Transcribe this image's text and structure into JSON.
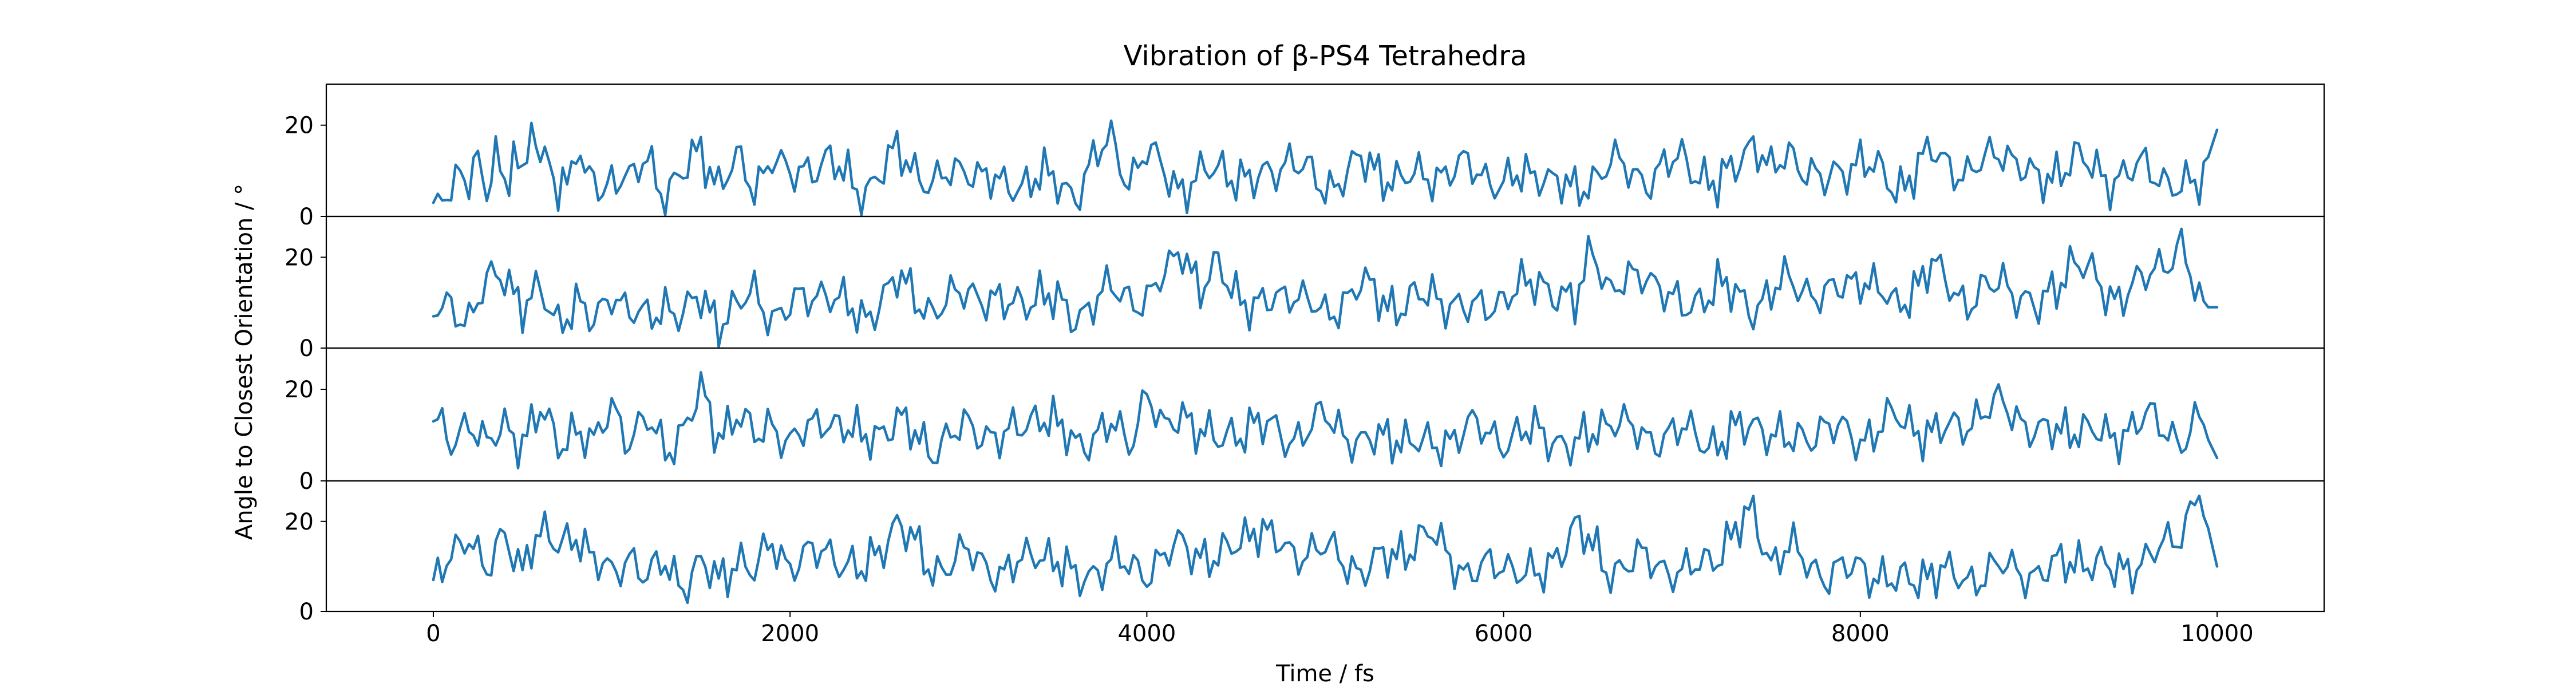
{
  "chart_data": {
    "type": "line",
    "title": "Vibration of β-PS4 Tetrahedra",
    "xlabel": "Time / fs",
    "ylabel": "Angle to Closest Orientation / °",
    "xlim": [
      -600,
      10600
    ],
    "x_ticks": [
      0,
      2000,
      4000,
      6000,
      8000,
      10000
    ],
    "x_tick_labels": [
      "0",
      "2000",
      "4000",
      "6000",
      "8000",
      "10000"
    ],
    "y_ticks": [
      0,
      20
    ],
    "y_tick_labels": [
      "0",
      "20"
    ],
    "ylim": [
      0,
      29
    ],
    "grid": false,
    "legend": "none",
    "line_color": "#1f77b4",
    "x_step": 25,
    "panels": [
      {
        "anchors": [
          [
            0,
            3
          ],
          [
            50,
            7
          ],
          [
            100,
            4
          ],
          [
            150,
            13
          ],
          [
            200,
            6
          ],
          [
            250,
            11
          ],
          [
            300,
            5
          ],
          [
            350,
            14
          ],
          [
            400,
            8
          ],
          [
            450,
            15
          ],
          [
            500,
            6
          ],
          [
            550,
            21
          ],
          [
            600,
            9
          ],
          [
            650,
            16
          ],
          [
            700,
            5
          ],
          [
            750,
            8
          ],
          [
            800,
            15
          ],
          [
            850,
            6
          ],
          [
            900,
            11
          ],
          [
            950,
            4
          ],
          [
            1000,
            10
          ],
          [
            1100,
            7
          ],
          [
            1200,
            13
          ],
          [
            1300,
            5
          ],
          [
            1400,
            9
          ],
          [
            1500,
            15
          ],
          [
            1600,
            7
          ],
          [
            1700,
            12
          ],
          [
            1800,
            6
          ],
          [
            1900,
            14
          ],
          [
            2000,
            8
          ],
          [
            2200,
            13
          ],
          [
            2400,
            5
          ],
          [
            2600,
            14
          ],
          [
            2800,
            7
          ],
          [
            3000,
            11
          ],
          [
            3200,
            6
          ],
          [
            3400,
            9
          ],
          [
            3600,
            5
          ],
          [
            3700,
            12
          ],
          [
            3800,
            17
          ],
          [
            3900,
            8
          ],
          [
            4000,
            14
          ],
          [
            4200,
            6
          ],
          [
            4400,
            11
          ],
          [
            4600,
            7
          ],
          [
            4800,
            13
          ],
          [
            5000,
            6
          ],
          [
            5200,
            12
          ],
          [
            5400,
            8
          ],
          [
            5600,
            9
          ],
          [
            5800,
            11
          ],
          [
            6000,
            7
          ],
          [
            6200,
            10
          ],
          [
            6400,
            5
          ],
          [
            6600,
            12
          ],
          [
            6800,
            8
          ],
          [
            7000,
            13
          ],
          [
            7200,
            6
          ],
          [
            7400,
            17
          ],
          [
            7500,
            9
          ],
          [
            7600,
            14
          ],
          [
            7800,
            7
          ],
          [
            8000,
            13
          ],
          [
            8200,
            6
          ],
          [
            8400,
            14
          ],
          [
            8600,
            9
          ],
          [
            8800,
            15
          ],
          [
            9000,
            7
          ],
          [
            9200,
            13
          ],
          [
            9400,
            8
          ],
          [
            9600,
            11
          ],
          [
            9800,
            6
          ],
          [
            9900,
            7
          ],
          [
            10000,
            19
          ]
        ]
      },
      {
        "anchors": [
          [
            0,
            7
          ],
          [
            100,
            10
          ],
          [
            200,
            6
          ],
          [
            300,
            14
          ],
          [
            400,
            17
          ],
          [
            500,
            9
          ],
          [
            600,
            12
          ],
          [
            700,
            6
          ],
          [
            800,
            10
          ],
          [
            900,
            5
          ],
          [
            1000,
            13
          ],
          [
            1100,
            8
          ],
          [
            1200,
            6
          ],
          [
            1300,
            10
          ],
          [
            1400,
            7
          ],
          [
            1500,
            11
          ],
          [
            1600,
            6
          ],
          [
            1700,
            9
          ],
          [
            1800,
            12
          ],
          [
            1900,
            7
          ],
          [
            2000,
            9
          ],
          [
            2200,
            13
          ],
          [
            2400,
            6
          ],
          [
            2600,
            15
          ],
          [
            2800,
            8
          ],
          [
            3000,
            13
          ],
          [
            3200,
            9
          ],
          [
            3400,
            12
          ],
          [
            3600,
            7
          ],
          [
            3800,
            13
          ],
          [
            4000,
            10
          ],
          [
            4100,
            16
          ],
          [
            4200,
            23
          ],
          [
            4300,
            12
          ],
          [
            4400,
            18
          ],
          [
            4600,
            8
          ],
          [
            4800,
            13
          ],
          [
            5000,
            7
          ],
          [
            5200,
            14
          ],
          [
            5400,
            9
          ],
          [
            5600,
            12
          ],
          [
            5800,
            8
          ],
          [
            6000,
            11
          ],
          [
            6200,
            15
          ],
          [
            6400,
            9
          ],
          [
            6500,
            23
          ],
          [
            6600,
            12
          ],
          [
            6800,
            17
          ],
          [
            7000,
            8
          ],
          [
            7200,
            14
          ],
          [
            7400,
            9
          ],
          [
            7600,
            15
          ],
          [
            7800,
            11
          ],
          [
            8000,
            16
          ],
          [
            8200,
            9
          ],
          [
            8400,
            18
          ],
          [
            8600,
            10
          ],
          [
            8800,
            15
          ],
          [
            9000,
            8
          ],
          [
            9200,
            20
          ],
          [
            9400,
            11
          ],
          [
            9600,
            15
          ],
          [
            9800,
            23
          ],
          [
            9900,
            9
          ],
          [
            10000,
            9
          ]
        ]
      },
      {
        "anchors": [
          [
            0,
            13
          ],
          [
            100,
            8
          ],
          [
            200,
            14
          ],
          [
            300,
            7
          ],
          [
            400,
            12
          ],
          [
            500,
            9
          ],
          [
            600,
            15
          ],
          [
            700,
            8
          ],
          [
            800,
            12
          ],
          [
            900,
            7
          ],
          [
            1000,
            17
          ],
          [
            1100,
            9
          ],
          [
            1200,
            13
          ],
          [
            1300,
            7
          ],
          [
            1400,
            11
          ],
          [
            1500,
            19
          ],
          [
            1600,
            10
          ],
          [
            1700,
            15
          ],
          [
            1800,
            9
          ],
          [
            1900,
            13
          ],
          [
            2000,
            8
          ],
          [
            2200,
            14
          ],
          [
            2400,
            9
          ],
          [
            2600,
            13
          ],
          [
            2800,
            7
          ],
          [
            3000,
            12
          ],
          [
            3200,
            9
          ],
          [
            3400,
            15
          ],
          [
            3600,
            8
          ],
          [
            3800,
            12
          ],
          [
            3900,
            8
          ],
          [
            4000,
            20
          ],
          [
            4100,
            10
          ],
          [
            4200,
            15
          ],
          [
            4400,
            8
          ],
          [
            4600,
            13
          ],
          [
            4800,
            9
          ],
          [
            5000,
            14
          ],
          [
            5200,
            8
          ],
          [
            5400,
            10
          ],
          [
            5600,
            7
          ],
          [
            5800,
            12
          ],
          [
            6000,
            9
          ],
          [
            6200,
            11
          ],
          [
            6400,
            7
          ],
          [
            6600,
            14
          ],
          [
            6800,
            9
          ],
          [
            7000,
            11
          ],
          [
            7200,
            8
          ],
          [
            7400,
            13
          ],
          [
            7600,
            8
          ],
          [
            7800,
            12
          ],
          [
            8000,
            9
          ],
          [
            8200,
            14
          ],
          [
            8400,
            10
          ],
          [
            8600,
            13
          ],
          [
            8800,
            17
          ],
          [
            9000,
            10
          ],
          [
            9200,
            12
          ],
          [
            9400,
            9
          ],
          [
            9600,
            14
          ],
          [
            9800,
            9
          ],
          [
            9900,
            13
          ],
          [
            10000,
            5
          ]
        ]
      },
      {
        "anchors": [
          [
            0,
            7
          ],
          [
            100,
            11
          ],
          [
            200,
            18
          ],
          [
            300,
            9
          ],
          [
            400,
            16
          ],
          [
            500,
            10
          ],
          [
            550,
            16
          ],
          [
            600,
            17
          ],
          [
            700,
            14
          ],
          [
            800,
            18
          ],
          [
            900,
            11
          ],
          [
            1000,
            8
          ],
          [
            1100,
            13
          ],
          [
            1200,
            7
          ],
          [
            1300,
            11
          ],
          [
            1400,
            6
          ],
          [
            1500,
            10
          ],
          [
            1600,
            7
          ],
          [
            1700,
            12
          ],
          [
            1800,
            8
          ],
          [
            1900,
            16
          ],
          [
            2000,
            10
          ],
          [
            2200,
            14
          ],
          [
            2400,
            8
          ],
          [
            2600,
            20
          ],
          [
            2800,
            9
          ],
          [
            3000,
            13
          ],
          [
            3200,
            8
          ],
          [
            3400,
            14
          ],
          [
            3600,
            7
          ],
          [
            3800,
            11
          ],
          [
            4000,
            9
          ],
          [
            4200,
            15
          ],
          [
            4400,
            11
          ],
          [
            4600,
            19
          ],
          [
            4800,
            13
          ],
          [
            5000,
            14
          ],
          [
            5200,
            9
          ],
          [
            5400,
            13
          ],
          [
            5600,
            17
          ],
          [
            5800,
            8
          ],
          [
            6000,
            11
          ],
          [
            6200,
            7
          ],
          [
            6400,
            19
          ],
          [
            6600,
            9
          ],
          [
            6800,
            12
          ],
          [
            7000,
            8
          ],
          [
            7200,
            13
          ],
          [
            7400,
            22
          ],
          [
            7500,
            11
          ],
          [
            7600,
            14
          ],
          [
            7800,
            8
          ],
          [
            8000,
            10
          ],
          [
            8200,
            6
          ],
          [
            8400,
            9
          ],
          [
            8600,
            7
          ],
          [
            8800,
            10
          ],
          [
            9000,
            8
          ],
          [
            9200,
            12
          ],
          [
            9400,
            9
          ],
          [
            9600,
            11
          ],
          [
            9800,
            18
          ],
          [
            9900,
            27
          ],
          [
            10000,
            10
          ]
        ]
      }
    ]
  }
}
